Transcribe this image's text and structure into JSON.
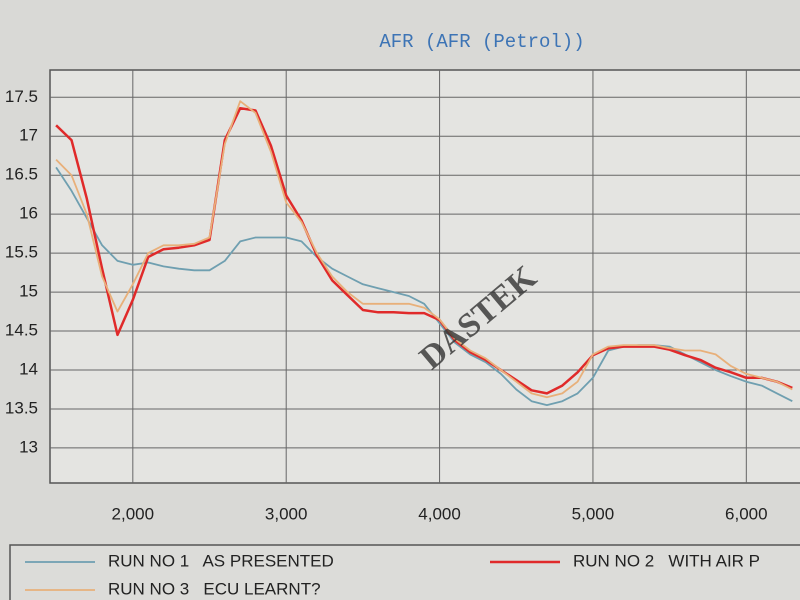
{
  "chart_data": {
    "type": "line",
    "title": "AFR (AFR (Petrol))",
    "watermark": "DASTEK",
    "x": [
      1500,
      1600,
      1700,
      1800,
      1900,
      2000,
      2100,
      2200,
      2300,
      2400,
      2500,
      2600,
      2700,
      2800,
      2900,
      3000,
      3100,
      3200,
      3300,
      3400,
      3500,
      3600,
      3700,
      3800,
      3900,
      4000,
      4100,
      4200,
      4300,
      4400,
      4500,
      4600,
      4700,
      4800,
      4900,
      5000,
      5100,
      5200,
      5300,
      5400,
      5500,
      5600,
      5700,
      5800,
      5900,
      6000,
      6100,
      6200,
      6300
    ],
    "series": [
      {
        "name": "RUN NO 1   AS PRESENTED",
        "color": "#6f9fb0",
        "values": [
          16.6,
          16.3,
          15.95,
          15.6,
          15.4,
          15.35,
          15.38,
          15.33,
          15.3,
          15.28,
          15.28,
          15.4,
          15.65,
          15.7,
          15.7,
          15.7,
          15.65,
          15.45,
          15.3,
          15.2,
          15.1,
          15.05,
          15.0,
          14.95,
          14.85,
          14.6,
          14.35,
          14.2,
          14.1,
          13.95,
          13.75,
          13.6,
          13.55,
          13.6,
          13.7,
          13.9,
          14.25,
          14.3,
          14.32,
          14.32,
          14.3,
          14.2,
          14.1,
          14.0,
          13.92,
          13.85,
          13.8,
          13.7,
          13.6
        ]
      },
      {
        "name": "RUN NO 2   WITH AIR P",
        "color": "#e02a2a",
        "values": [
          17.14,
          16.95,
          16.2,
          15.3,
          14.45,
          14.9,
          15.45,
          15.55,
          15.57,
          15.6,
          15.67,
          16.95,
          17.36,
          17.33,
          16.88,
          16.24,
          15.92,
          15.47,
          15.15,
          14.96,
          14.77,
          14.74,
          14.74,
          14.73,
          14.73,
          14.64,
          14.38,
          14.23,
          14.13,
          14.0,
          13.87,
          13.74,
          13.7,
          13.8,
          13.97,
          14.19,
          14.28,
          14.3,
          14.3,
          14.3,
          14.26,
          14.19,
          14.13,
          14.03,
          13.97,
          13.9,
          13.9,
          13.85,
          13.77
        ]
      },
      {
        "name": "RUN NO 3   ECU LEARNT?",
        "color": "#e8b07a",
        "values": [
          16.7,
          16.5,
          16.0,
          15.2,
          14.75,
          15.1,
          15.5,
          15.6,
          15.6,
          15.62,
          15.7,
          16.9,
          17.45,
          17.3,
          16.8,
          16.15,
          15.9,
          15.5,
          15.2,
          15.0,
          14.85,
          14.85,
          14.85,
          14.85,
          14.8,
          14.65,
          14.4,
          14.25,
          14.15,
          14.0,
          13.85,
          13.7,
          13.65,
          13.7,
          13.85,
          14.2,
          14.3,
          14.32,
          14.32,
          14.32,
          14.28,
          14.25,
          14.25,
          14.2,
          14.05,
          13.95,
          13.9,
          13.85,
          13.75
        ]
      }
    ],
    "xlim": [
      1460,
      6350
    ],
    "xticks": [
      {
        "value": 2000,
        "label": "2,000"
      },
      {
        "value": 3000,
        "label": "3,000"
      },
      {
        "value": 4000,
        "label": "4,000"
      },
      {
        "value": 5000,
        "label": "5,000"
      },
      {
        "value": 6000,
        "label": "6,000"
      }
    ],
    "ylim": [
      12.55,
      17.85
    ],
    "yticks": [
      17.5,
      17,
      16.5,
      16,
      15.5,
      15,
      14.5,
      14,
      13.5,
      13
    ],
    "grid": true
  }
}
